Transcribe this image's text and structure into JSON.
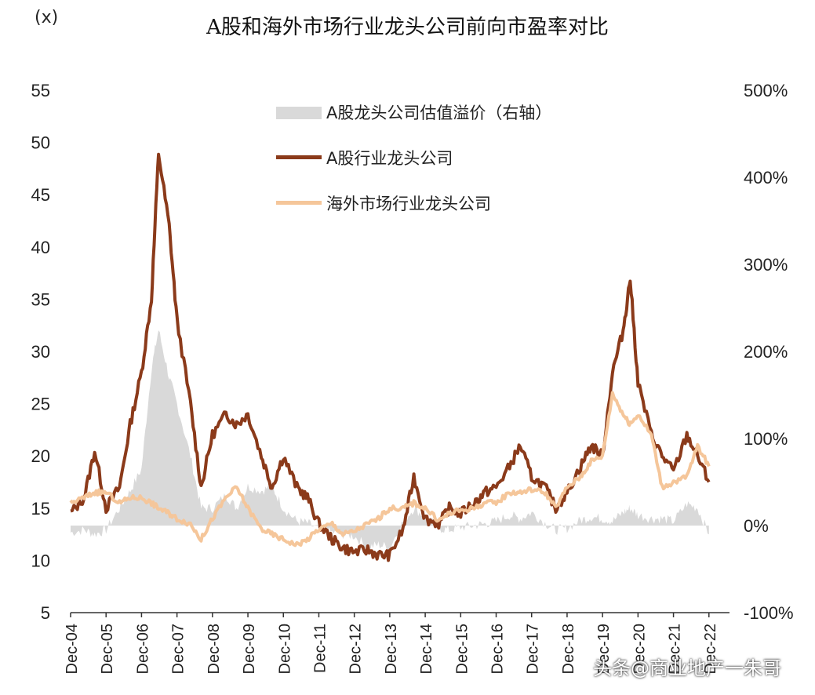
{
  "chart_data": {
    "type": "line",
    "title": "A股和海外市场行业龙头公司前向市盈率对比",
    "y_unit_label": "(x)",
    "left_axis": {
      "ylim": [
        5,
        55
      ],
      "ticks": [
        "55",
        "50",
        "45",
        "40",
        "35",
        "30",
        "25",
        "20",
        "15",
        "10",
        "5"
      ]
    },
    "right_axis": {
      "ylim": [
        -100,
        500
      ],
      "ticks": [
        "500%",
        "400%",
        "300%",
        "200%",
        "100%",
        "0%",
        "-100%"
      ]
    },
    "x_ticks": [
      "Dec-04",
      "Dec-05",
      "Dec-06",
      "Dec-07",
      "Dec-08",
      "Dec-09",
      "Dec-10",
      "Dec-11",
      "Dec-12",
      "Dec-13",
      "Dec-14",
      "Dec-15",
      "Dec-16",
      "Dec-17",
      "Dec-18",
      "Dec-19",
      "Dec-20",
      "Dec-21",
      "Dec-22"
    ],
    "x": [
      2004.92,
      2005.3,
      2005.6,
      2005.92,
      2006.3,
      2006.6,
      2006.92,
      2007.2,
      2007.4,
      2007.7,
      2007.92,
      2008.3,
      2008.6,
      2008.92,
      2009.3,
      2009.6,
      2009.92,
      2010.3,
      2010.6,
      2010.92,
      2011.3,
      2011.6,
      2011.92,
      2012.3,
      2012.6,
      2012.92,
      2013.3,
      2013.6,
      2013.92,
      2014.3,
      2014.6,
      2014.92,
      2015.3,
      2015.6,
      2015.92,
      2016.3,
      2016.6,
      2016.92,
      2017.3,
      2017.6,
      2017.92,
      2018.3,
      2018.6,
      2018.92,
      2019.3,
      2019.6,
      2019.92,
      2020.2,
      2020.5,
      2020.7,
      2020.92,
      2021.3,
      2021.6,
      2021.92,
      2022.3,
      2022.6,
      2022.92
    ],
    "legend": [
      "A股龙头公司估值溢价（右轴）",
      "A股行业龙头公司",
      "海外市场行业龙头公司"
    ],
    "series": [
      {
        "name": "A股龙头公司估值溢价（右轴）",
        "type": "area",
        "axis": "right",
        "color": "#d9d9d9",
        "values": [
          -8,
          -5,
          -10,
          -5,
          20,
          40,
          65,
          180,
          225,
          170,
          140,
          80,
          20,
          20,
          35,
          20,
          45,
          40,
          45,
          20,
          5,
          3,
          -5,
          -8,
          -10,
          -12,
          -25,
          -22,
          -25,
          5,
          20,
          10,
          -3,
          -5,
          -2,
          0,
          2,
          5,
          12,
          8,
          15,
          3,
          -5,
          -3,
          6,
          10,
          8,
          5,
          15,
          20,
          12,
          8,
          8,
          5,
          25,
          20,
          -10
        ]
      },
      {
        "name": "A股行业龙头公司",
        "type": "line",
        "axis": "left",
        "color": "#8b3a1a",
        "values": [
          14.5,
          16,
          20.5,
          15,
          17,
          23,
          28,
          35,
          49,
          42,
          33,
          25,
          17,
          22,
          24,
          23,
          24,
          20,
          17,
          20,
          17,
          16,
          13.5,
          12,
          11.2,
          10.8,
          11,
          10.5,
          10.5,
          13,
          18,
          14,
          13.5,
          15,
          14.5,
          15.5,
          16.5,
          17,
          19,
          21,
          18,
          17,
          15,
          16.5,
          19,
          21,
          20,
          28,
          32,
          37,
          27,
          22,
          20,
          18.5,
          22,
          20,
          17.5
        ]
      },
      {
        "name": "海外市场行业龙头公司",
        "type": "line",
        "axis": "left",
        "color": "#f5c69a",
        "values": [
          15.5,
          16,
          16.5,
          16.5,
          15.5,
          16,
          16,
          15.5,
          15,
          14.5,
          14,
          13.5,
          12,
          14,
          16,
          17,
          15,
          13,
          12.5,
          12,
          11.5,
          12,
          13,
          13.5,
          12.5,
          12.8,
          13.5,
          14,
          15,
          15,
          15.5,
          15,
          13.8,
          14.5,
          14.8,
          15,
          15.5,
          15.5,
          16.5,
          16.5,
          16.8,
          16.5,
          15,
          17,
          18,
          19.5,
          20,
          26,
          24,
          23,
          24,
          22,
          17,
          17.5,
          18,
          21,
          19
        ]
      }
    ]
  },
  "watermark": "头条@商业地产一朱哥"
}
